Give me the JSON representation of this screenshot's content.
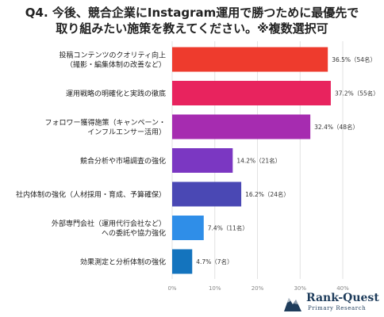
{
  "chart_data": {
    "type": "bar",
    "orientation": "horizontal",
    "title_lines": [
      "Q4. 今後、競合企業にInstagram運用で勝つために最優先で",
      "取り組みたい施策を教えてください。※複数選択可"
    ],
    "categories": [
      [
        "投稿コンテンツのクオリティ向上",
        "（撮影・編集体制の改善など）"
      ],
      [
        "運用戦略の明確化と実践の徹底"
      ],
      [
        "フォロワー獲得施策（キャンペーン・",
        "インフルエンサー活用）"
      ],
      [
        "競合分析や市場調査の強化"
      ],
      [
        "社内体制の強化（人材採用・育成、予算確保）"
      ],
      [
        "外部専門会社（運用代行会社など）",
        "への委託や協力強化"
      ],
      [
        "効果測定と分析体制の強化"
      ]
    ],
    "values": [
      36.5,
      37.2,
      32.4,
      14.2,
      16.2,
      7.4,
      4.7
    ],
    "value_labels": [
      "36.5%（54名）",
      "37.2%（55名）",
      "32.4%（48名）",
      "14.2%（21名）",
      "16.2%（24名）",
      "7.4%（11名）",
      "4.7%（7名）"
    ],
    "bar_colors": [
      "#ee3b2d",
      "#e8235e",
      "#a62cb0",
      "#7b37c2",
      "#4a48b4",
      "#2f8ee8",
      "#1474be"
    ],
    "xlim": [
      0,
      40
    ],
    "xticks": [
      "0%",
      "10%",
      "20%",
      "30%",
      "40%"
    ],
    "grid": true
  },
  "logo": {
    "name": "Rank-Quest",
    "sub": "Primary Research",
    "color": "#1f3d5c"
  }
}
